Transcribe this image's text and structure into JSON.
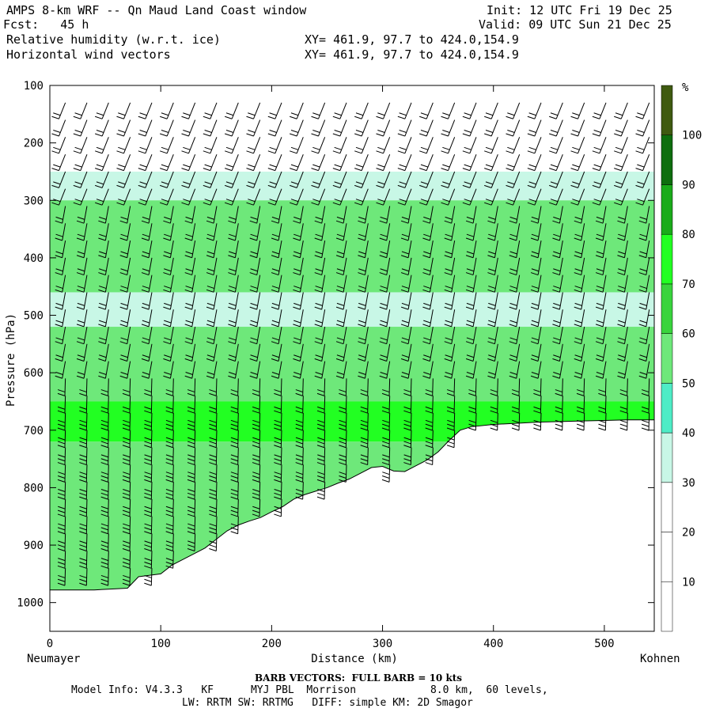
{
  "header": {
    "title": "AMPS 8-km WRF -- Qn Maud Land Coast window",
    "fcst": "Fcst:   45 h",
    "field1": "Relative humidity (w.r.t. ice)",
    "field2": "Horizontal wind vectors",
    "xy1": "XY= 461.9, 97.7 to 424.0,154.9",
    "xy2": "XY= 461.9, 97.7 to 424.0,154.9",
    "init": "Init: 12 UTC Fri 19 Dec 25",
    "valid": "Valid: 09 UTC Sun 21 Dec 25"
  },
  "chart_data": {
    "type": "area",
    "title": "Relative humidity (w.r.t. ice) cross-section with horizontal wind barbs",
    "xlabel": "Distance (km)",
    "ylabel": "Pressure (hPa)",
    "xlim": [
      0,
      545
    ],
    "ylim": [
      1050,
      100
    ],
    "x_ticks": [
      0,
      100,
      200,
      300,
      400,
      500
    ],
    "y_ticks": [
      100,
      200,
      300,
      400,
      500,
      600,
      700,
      800,
      900,
      1000
    ],
    "x_start_label": "Neumayer",
    "x_end_label": "Kohnen",
    "colorbar": {
      "unit": "%",
      "levels": [
        10,
        20,
        30,
        40,
        50,
        60,
        70,
        80,
        90,
        100
      ],
      "colors": [
        "#ffffff",
        "#ffffff",
        "#ffffff",
        "#c8f7e6",
        "#4eecc6",
        "#6ee87a",
        "#39d43d",
        "#22ff22",
        "#1aab1a",
        "#0e6e0e",
        "#3f5a10"
      ]
    },
    "terrain_surface": {
      "x_km": [
        0,
        20,
        40,
        60,
        70,
        80,
        100,
        110,
        120,
        140,
        150,
        160,
        170,
        180,
        190,
        200,
        210,
        220,
        230,
        240,
        250,
        260,
        270,
        280,
        290,
        300,
        310,
        320,
        330,
        340,
        350,
        360,
        370,
        380,
        400,
        420,
        440,
        460,
        480,
        500,
        520,
        545
      ],
      "p_hPa": [
        978,
        978,
        978,
        976,
        975,
        955,
        950,
        935,
        925,
        905,
        890,
        875,
        865,
        858,
        852,
        842,
        833,
        820,
        812,
        806,
        800,
        792,
        785,
        775,
        765,
        763,
        771,
        772,
        762,
        752,
        738,
        718,
        700,
        694,
        690,
        688,
        686,
        685,
        684,
        683,
        682,
        682
      ]
    },
    "rh_bands": [
      {
        "p_top": 250,
        "p_bottom": 300,
        "rh": 35
      },
      {
        "p_top": 300,
        "p_bottom": 460,
        "rh": 55
      },
      {
        "p_top": 460,
        "p_bottom": 520,
        "rh": 35
      },
      {
        "p_top": 520,
        "p_bottom": 650,
        "rh": 55
      },
      {
        "p_top": 650,
        "p_bottom": 720,
        "rh": 75
      },
      {
        "p_top": 720,
        "p_bottom": 980,
        "rh": 50
      }
    ],
    "barb_note": "Barbs point toward surface/westward flow; full barb = 10 kts"
  },
  "footer": {
    "barb_note": "BARB VECTORS:  FULL BARB = 10 kts",
    "model_line1": "Model Info: V4.3.3   KF      MYJ PBL  Morrison            8.0 km,  60 levels,",
    "model_line2": "LW: RRTM SW: RRTMG   DIFF: simple KM: 2D Smagor"
  }
}
